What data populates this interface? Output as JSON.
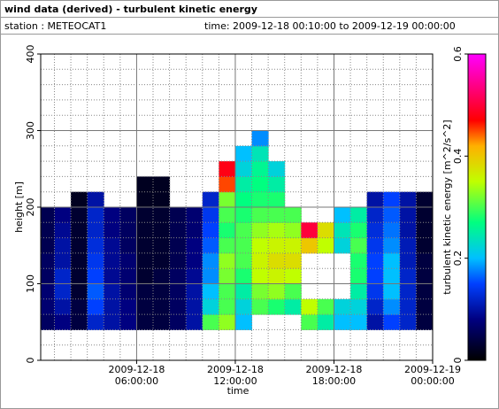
{
  "chart_data": {
    "type": "heatmap",
    "title": "wind data (derived) - turbulent kinetic energy",
    "station": "station : METEOCAT1",
    "period": "time: 2009-12-18 00:10:00 to 2009-12-19 00:00:00",
    "xlabel": "time",
    "ylabel": "height [m]",
    "colorbar_label": "turbulent kinetic energy [m^2/s^2]",
    "bins_x": [
      0.1667,
      1,
      2,
      3,
      4,
      5,
      6,
      7,
      8,
      9,
      10,
      11,
      12,
      13,
      14,
      15,
      16,
      17,
      18,
      19,
      20,
      21,
      22,
      23,
      24
    ],
    "bins_y": [
      40,
      60,
      80,
      100,
      120,
      140,
      160,
      180,
      200,
      220,
      240,
      260,
      280,
      300,
      320
    ],
    "z": [
      [
        0.06,
        0.07,
        0.07,
        0.06,
        0.06,
        0.05,
        0.05,
        0.05,
        null,
        null,
        null,
        null,
        null,
        null
      ],
      [
        0.08,
        0.1,
        0.12,
        0.12,
        0.1,
        0.1,
        0.09,
        0.08,
        null,
        null,
        null,
        null,
        null,
        null
      ],
      [
        0.04,
        0.04,
        0.03,
        0.03,
        0.03,
        0.03,
        0.03,
        0.03,
        0.02,
        null,
        null,
        null,
        null,
        null
      ],
      [
        0.12,
        0.15,
        0.16,
        0.15,
        0.14,
        0.13,
        0.12,
        0.12,
        0.1,
        null,
        null,
        null,
        null,
        null
      ],
      [
        0.1,
        0.1,
        0.1,
        0.09,
        0.09,
        0.09,
        0.08,
        0.08,
        null,
        null,
        null,
        null,
        null,
        null
      ],
      [
        0.08,
        0.08,
        0.07,
        0.07,
        0.07,
        0.06,
        0.06,
        0.06,
        null,
        null,
        null,
        null,
        null,
        null
      ],
      [
        0.04,
        0.04,
        0.04,
        0.03,
        0.03,
        0.03,
        0.03,
        0.03,
        0.02,
        0.02,
        null,
        null,
        null,
        null
      ],
      [
        0.04,
        0.04,
        0.04,
        0.04,
        0.03,
        0.03,
        0.03,
        0.03,
        0.02,
        0.02,
        null,
        null,
        null,
        null
      ],
      [
        0.06,
        0.06,
        0.06,
        0.06,
        0.05,
        0.05,
        0.05,
        0.05,
        null,
        null,
        null,
        null,
        null,
        null
      ],
      [
        0.1,
        0.1,
        0.1,
        0.09,
        0.08,
        0.08,
        0.07,
        0.07,
        null,
        null,
        null,
        null,
        null,
        null
      ],
      [
        0.3,
        0.22,
        0.2,
        0.18,
        0.18,
        0.16,
        0.15,
        0.14,
        0.12,
        null,
        null,
        null,
        null,
        null
      ],
      [
        0.33,
        0.3,
        0.3,
        0.32,
        0.33,
        0.3,
        0.28,
        0.3,
        0.32,
        0.45,
        0.48,
        null,
        null,
        null
      ],
      [
        0.2,
        0.22,
        0.25,
        0.28,
        0.3,
        0.3,
        0.3,
        0.28,
        0.27,
        0.25,
        0.22,
        0.2,
        null,
        null
      ],
      [
        null,
        0.3,
        0.32,
        0.35,
        0.36,
        0.35,
        0.33,
        0.3,
        0.28,
        0.27,
        0.26,
        0.24,
        0.18,
        null
      ],
      [
        null,
        0.28,
        0.33,
        0.36,
        0.38,
        0.36,
        0.34,
        0.3,
        0.28,
        0.25,
        0.22,
        null,
        null,
        null
      ],
      [
        null,
        0.25,
        0.3,
        0.35,
        0.38,
        0.36,
        0.33,
        0.3,
        null,
        null,
        null,
        null,
        null,
        null
      ],
      [
        0.3,
        0.35,
        null,
        null,
        null,
        0.4,
        0.5,
        null,
        null,
        null,
        null,
        null,
        null,
        null
      ],
      [
        0.25,
        0.3,
        null,
        null,
        null,
        0.35,
        0.38,
        null,
        null,
        null,
        null,
        null,
        null,
        null
      ],
      [
        0.2,
        0.22,
        null,
        null,
        null,
        0.22,
        0.24,
        0.2,
        null,
        null,
        null,
        null,
        null,
        null
      ],
      [
        0.2,
        0.22,
        0.25,
        0.28,
        0.28,
        0.3,
        0.28,
        0.25,
        null,
        null,
        null,
        null,
        null,
        null
      ],
      [
        0.1,
        0.12,
        0.14,
        0.15,
        0.15,
        0.14,
        0.13,
        0.12,
        0.1,
        null,
        null,
        null,
        null,
        null
      ],
      [
        0.15,
        0.18,
        0.2,
        0.2,
        0.2,
        0.18,
        0.17,
        0.16,
        0.15,
        null,
        null,
        null,
        null,
        null
      ],
      [
        0.12,
        0.12,
        0.12,
        0.12,
        0.11,
        0.11,
        0.1,
        0.1,
        0.1,
        null,
        null,
        null,
        null,
        null
      ],
      [
        0.04,
        0.04,
        0.04,
        0.04,
        0.04,
        0.03,
        0.03,
        0.03,
        0.03,
        null,
        null,
        null,
        null,
        null
      ]
    ],
    "xlim": [
      0.1667,
      24
    ],
    "ylim": [
      0,
      400
    ],
    "xticks": [
      {
        "value": 6,
        "label": "2009-12-18\n06:00:00"
      },
      {
        "value": 12,
        "label": "2009-12-18\n12:00:00"
      },
      {
        "value": 18,
        "label": "2009-12-18\n18:00:00"
      },
      {
        "value": 24,
        "label": "2009-12-19\n00:00:00"
      }
    ],
    "yticks": [
      0,
      100,
      200,
      300,
      400
    ],
    "xminorticks": [
      1,
      2,
      3,
      4,
      5,
      7,
      8,
      9,
      10,
      11,
      13,
      14,
      15,
      16,
      17,
      19,
      20,
      21,
      22,
      23
    ],
    "yminorticks": [
      20,
      40,
      60,
      80,
      120,
      140,
      160,
      180,
      220,
      240,
      260,
      280,
      320,
      340,
      360,
      380
    ],
    "zlim": [
      0,
      0.6
    ],
    "zticks": [
      0,
      0.2,
      0.4,
      0.6
    ],
    "colorscale": [
      [
        0,
        "#000000"
      ],
      [
        0.08,
        "#000080"
      ],
      [
        0.15,
        "#0040ff"
      ],
      [
        0.2,
        "#00c0ff"
      ],
      [
        0.27,
        "#00ff80"
      ],
      [
        0.35,
        "#c0ff00"
      ],
      [
        0.42,
        "#ffb000"
      ],
      [
        0.47,
        "#ff0000"
      ],
      [
        0.6,
        "#ff00ff"
      ]
    ],
    "grid": true
  }
}
